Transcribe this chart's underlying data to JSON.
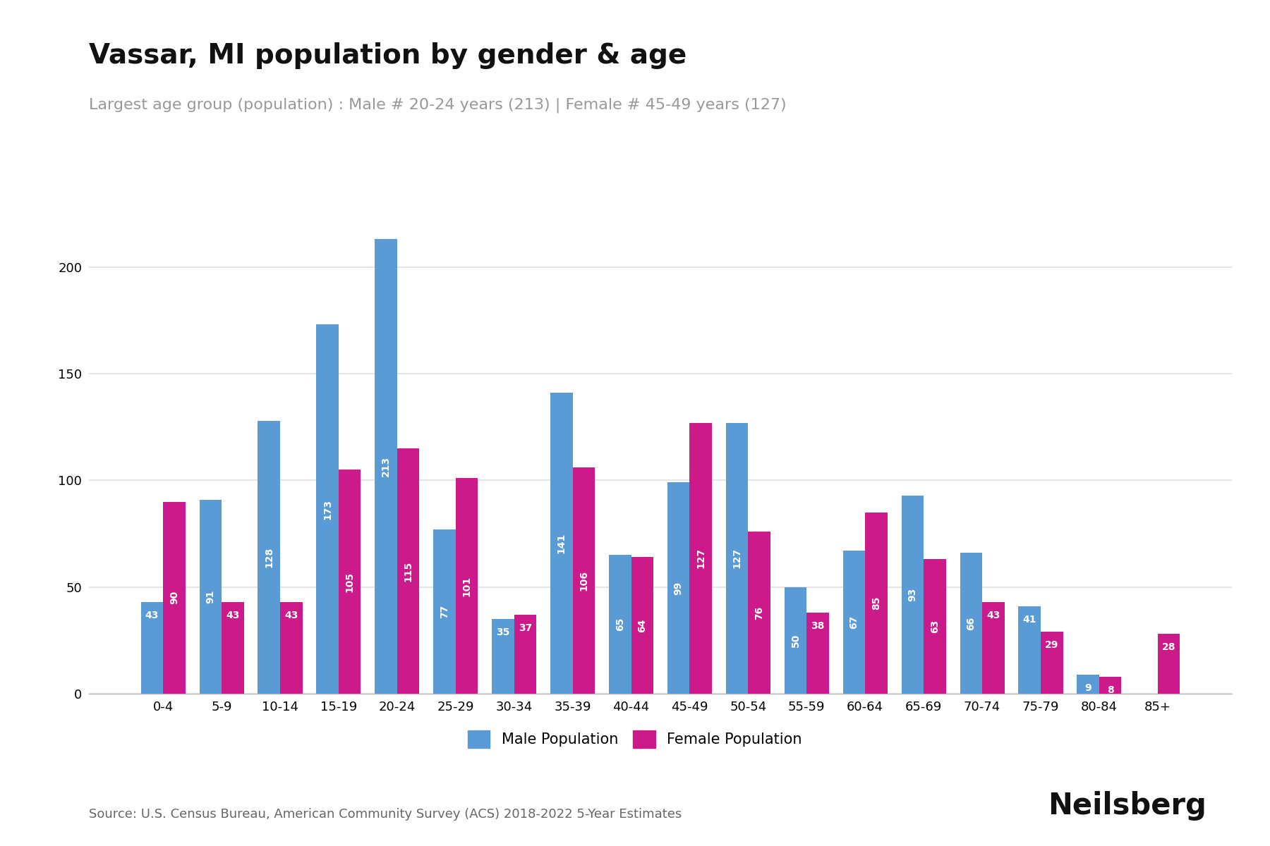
{
  "title": "Vassar, MI population by gender & age",
  "subtitle": "Largest age group (population) : Male # 20-24 years (213) | Female # 45-49 years (127)",
  "source": "Source: U.S. Census Bureau, American Community Survey (ACS) 2018-2022 5-Year Estimates",
  "watermark": "Neilsberg",
  "age_groups": [
    "0-4",
    "5-9",
    "10-14",
    "15-19",
    "20-24",
    "25-29",
    "30-34",
    "35-39",
    "40-44",
    "45-49",
    "50-54",
    "55-59",
    "60-64",
    "65-69",
    "70-74",
    "75-79",
    "80-84",
    "85+"
  ],
  "male": [
    43,
    91,
    128,
    173,
    213,
    77,
    35,
    141,
    65,
    99,
    127,
    50,
    67,
    93,
    66,
    41,
    9,
    0
  ],
  "female": [
    90,
    43,
    43,
    105,
    115,
    101,
    37,
    106,
    64,
    127,
    76,
    38,
    85,
    63,
    43,
    29,
    8,
    28
  ],
  "male_color": "#5b9bd5",
  "female_color": "#cc1a8a",
  "bar_width": 0.38,
  "ylim": [
    0,
    230
  ],
  "yticks": [
    0,
    50,
    100,
    150,
    200
  ],
  "title_fontsize": 28,
  "subtitle_fontsize": 16,
  "source_fontsize": 13,
  "watermark_fontsize": 30,
  "label_fontsize": 10,
  "tick_fontsize": 13,
  "legend_fontsize": 15,
  "background_color": "#ffffff",
  "grid_color": "#e0e0e0"
}
